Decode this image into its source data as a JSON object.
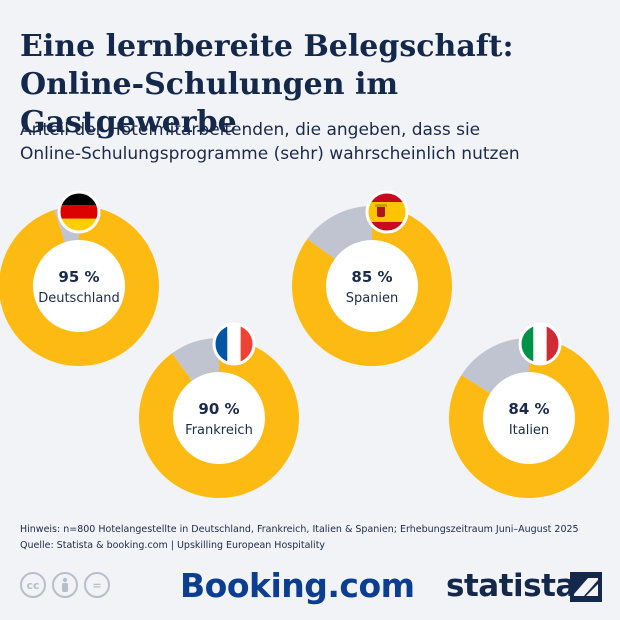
{
  "header": {
    "title_line1": "Eine lernbereite Belegschaft:",
    "title_line2": "Online-Schulungen im Gastgewerbe",
    "subtitle_line1": "Anteil der Hotelmitarbeitenden, die angeben, dass sie",
    "subtitle_line2": "Online-Schulungsprogramme (sehr) wahrscheinlich nutzen"
  },
  "chart_data": {
    "type": "pie",
    "unit": "%",
    "colors": {
      "value": "#fdba12",
      "rest": "#bfc4d0",
      "center": "#ffffff"
    },
    "items": [
      {
        "country": "Deutschland",
        "value": 95,
        "label": "95 %",
        "flag": "germany-flag"
      },
      {
        "country": "Frankreich",
        "value": 90,
        "label": "90 %",
        "flag": "france-flag"
      },
      {
        "country": "Spanien",
        "value": 85,
        "label": "85 %",
        "flag": "spain-flag"
      },
      {
        "country": "Italien",
        "value": 84,
        "label": "84 %",
        "flag": "italy-flag"
      }
    ]
  },
  "notes": {
    "hint": "Hinweis: n=800 Hotelangestellte in Deutschland, Frankreich, Italien & Spanien; Erhebungszeitraum Juni–August 2025",
    "source": "Quelle: Statista & booking.com | Upskilling European Hospitality"
  },
  "footer": {
    "booking": "Booking.com",
    "statista": "statista",
    "icons": [
      "cc-icon",
      "by-icon",
      "nd-icon"
    ]
  }
}
